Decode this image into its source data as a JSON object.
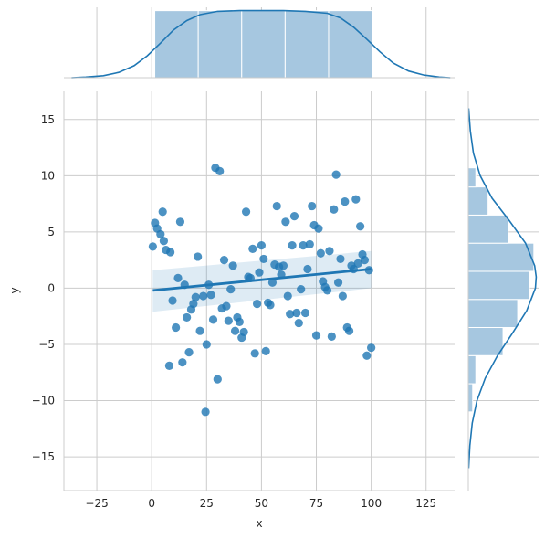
{
  "chart_data": {
    "type": "scatter",
    "title": "",
    "xlabel": "x",
    "ylabel": "y",
    "xlim": [
      -40,
      138
    ],
    "ylim": [
      -18,
      17.5
    ],
    "xticks": [
      -25,
      0,
      25,
      50,
      75,
      100,
      125
    ],
    "yticks": [
      -15,
      -10,
      -5,
      0,
      5,
      10,
      15
    ],
    "grid": true,
    "colors": {
      "points": "#1f77b4",
      "fill": "#a6c7e0",
      "grid": "#cccccc",
      "bar_edge": "#ffffff"
    },
    "points": [
      [
        0.5,
        3.7
      ],
      [
        1.5,
        5.8
      ],
      [
        2.5,
        5.3
      ],
      [
        4,
        4.8
      ],
      [
        5,
        6.8
      ],
      [
        5.5,
        4.2
      ],
      [
        6.5,
        3.4
      ],
      [
        8,
        -6.9
      ],
      [
        8.5,
        3.2
      ],
      [
        9.5,
        -1.1
      ],
      [
        11,
        -3.5
      ],
      [
        12,
        0.9
      ],
      [
        13,
        5.9
      ],
      [
        14,
        -6.6
      ],
      [
        15,
        0.3
      ],
      [
        16,
        -2.6
      ],
      [
        17,
        -5.7
      ],
      [
        18,
        -1.9
      ],
      [
        19,
        -1.4
      ],
      [
        20,
        -0.8
      ],
      [
        21,
        2.8
      ],
      [
        22,
        -3.8
      ],
      [
        23.5,
        -0.7
      ],
      [
        24.5,
        -11.0
      ],
      [
        25,
        -5.0
      ],
      [
        26,
        0.3
      ],
      [
        27,
        -0.6
      ],
      [
        28,
        -2.8
      ],
      [
        29,
        10.7
      ],
      [
        30,
        -8.1
      ],
      [
        31,
        10.4
      ],
      [
        32,
        -1.8
      ],
      [
        33,
        2.5
      ],
      [
        34,
        -1.6
      ],
      [
        35,
        -2.9
      ],
      [
        36,
        -0.1
      ],
      [
        37,
        2.0
      ],
      [
        38,
        -3.8
      ],
      [
        39,
        -2.6
      ],
      [
        40,
        -3.0
      ],
      [
        41,
        -4.4
      ],
      [
        42,
        -3.9
      ],
      [
        43,
        6.8
      ],
      [
        44,
        1.0
      ],
      [
        45,
        0.9
      ],
      [
        46,
        3.5
      ],
      [
        47,
        -5.8
      ],
      [
        48,
        -1.4
      ],
      [
        49,
        1.4
      ],
      [
        50,
        3.8
      ],
      [
        51,
        2.6
      ],
      [
        52,
        -5.6
      ],
      [
        53,
        -1.3
      ],
      [
        54,
        -1.5
      ],
      [
        55,
        0.5
      ],
      [
        56,
        2.1
      ],
      [
        57,
        7.3
      ],
      [
        58,
        1.9
      ],
      [
        59,
        1.2
      ],
      [
        60,
        2.0
      ],
      [
        61,
        5.9
      ],
      [
        62,
        -0.7
      ],
      [
        63,
        -2.3
      ],
      [
        64,
        3.8
      ],
      [
        65,
        6.4
      ],
      [
        66,
        -2.2
      ],
      [
        67,
        -3.1
      ],
      [
        68,
        -0.1
      ],
      [
        69,
        3.8
      ],
      [
        70,
        -2.2
      ],
      [
        71,
        1.7
      ],
      [
        72,
        3.9
      ],
      [
        73,
        7.3
      ],
      [
        74,
        5.6
      ],
      [
        75,
        -4.2
      ],
      [
        76,
        5.3
      ],
      [
        77,
        3.1
      ],
      [
        78,
        0.6
      ],
      [
        79,
        0.1
      ],
      [
        80,
        -0.2
      ],
      [
        81,
        3.3
      ],
      [
        82,
        -4.3
      ],
      [
        83,
        7.0
      ],
      [
        84,
        10.1
      ],
      [
        85,
        0.5
      ],
      [
        86,
        2.6
      ],
      [
        87,
        -0.7
      ],
      [
        88,
        7.7
      ],
      [
        89,
        -3.5
      ],
      [
        90,
        -3.8
      ],
      [
        91,
        2.0
      ],
      [
        92,
        1.7
      ],
      [
        93,
        7.9
      ],
      [
        94,
        2.2
      ],
      [
        95,
        5.5
      ],
      [
        96,
        3.0
      ],
      [
        97,
        2.5
      ],
      [
        98,
        -6.0
      ],
      [
        99,
        1.6
      ],
      [
        100,
        -5.3
      ]
    ],
    "regression": {
      "x": [
        0.5,
        100
      ],
      "y": [
        -0.2,
        1.7
      ],
      "ci_lower": [
        -2.1,
        0.0
      ],
      "ci_upper": [
        1.6,
        3.3
      ]
    },
    "x_marginal": {
      "bin_edges": [
        1.4,
        21.2,
        41.0,
        60.8,
        80.6,
        100.4
      ],
      "density": [
        0.0101,
        0.0101,
        0.0101,
        0.0101,
        0.0101
      ],
      "kde_x": [
        -36.5,
        -30,
        -22,
        -15,
        -8,
        -2,
        4,
        10,
        16,
        22,
        30,
        40,
        50,
        60,
        70,
        80,
        86,
        92,
        98,
        104,
        110,
        117,
        124,
        131,
        136
      ],
      "kde_y": [
        0,
        0.0001,
        0.0003,
        0.0008,
        0.0018,
        0.0033,
        0.0052,
        0.0072,
        0.0086,
        0.0095,
        0.01,
        0.0101,
        0.0101,
        0.0101,
        0.01,
        0.0097,
        0.009,
        0.0076,
        0.0058,
        0.0039,
        0.0022,
        0.001,
        0.0004,
        0.0001,
        0
      ]
    },
    "y_marginal": {
      "bin_edges": [
        -11.0,
        -8.5,
        -6.0,
        -3.5,
        -1.0,
        1.5,
        4.0,
        6.5,
        9.0,
        10.7
      ],
      "density": [
        0.011,
        0.019,
        0.088,
        0.125,
        0.155,
        0.166,
        0.101,
        0.05,
        0.019
      ],
      "kde_y": [
        -16,
        -14,
        -12,
        -10,
        -8,
        -6,
        -4,
        -2,
        0,
        1,
        2,
        4,
        6,
        8,
        10,
        12,
        14,
        16
      ],
      "kde_x": [
        0.001,
        0.004,
        0.01,
        0.022,
        0.043,
        0.074,
        0.112,
        0.148,
        0.17,
        0.172,
        0.168,
        0.145,
        0.104,
        0.06,
        0.03,
        0.013,
        0.005,
        0.001
      ]
    }
  }
}
